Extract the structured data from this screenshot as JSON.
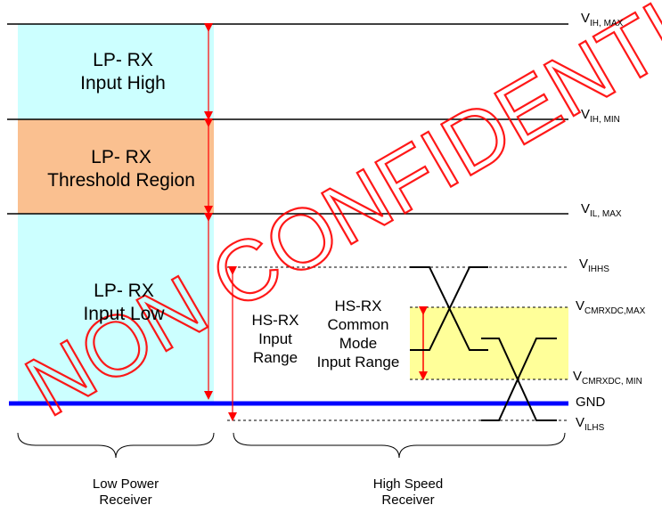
{
  "colors": {
    "lp_high_fill": "#ccffff",
    "lp_threshold_fill": "#fac090",
    "hs_cm_fill": "#ffff99",
    "arrow_red": "#ff0000",
    "ground_line": "#0000ff",
    "watermark": "#ff0000"
  },
  "lp_regions": {
    "input_high": {
      "line1": "LP- RX",
      "line2": "Input High"
    },
    "threshold": {
      "line1": "LP- RX",
      "line2": "Threshold Region"
    },
    "input_low": {
      "line1": "LP- RX",
      "line2": "Input Low"
    }
  },
  "hs_labels": {
    "input_range": {
      "line1": "HS-RX",
      "line2": "Input",
      "line3": "Range"
    },
    "common_mode": {
      "line1": "HS-RX",
      "line2": "Common",
      "line3": "Mode",
      "line4": "Input Range"
    }
  },
  "levels": {
    "vih_max": {
      "main": "V",
      "sub": "IH, MAX"
    },
    "vih_min": {
      "main": "V",
      "sub": "IH, MIN"
    },
    "vil_max": {
      "main": "V",
      "sub": "IL, MAX"
    },
    "vihhs": {
      "main": "V",
      "sub": "IHHS"
    },
    "vcm_max": {
      "main": "V",
      "sub": "CMRXDC,MAX"
    },
    "vcm_min": {
      "main": "V",
      "sub": "CMRXDC, MIN"
    },
    "gnd": "GND",
    "vilhs": {
      "main": "V",
      "sub": "ILHS"
    }
  },
  "groups": {
    "low_power": {
      "line1": "Low Power",
      "line2": "Receiver"
    },
    "high_speed": {
      "line1": "High Speed",
      "line2": "Receiver"
    }
  },
  "watermark_text": "NON CONFIDENTIAL DISCLOSURE"
}
